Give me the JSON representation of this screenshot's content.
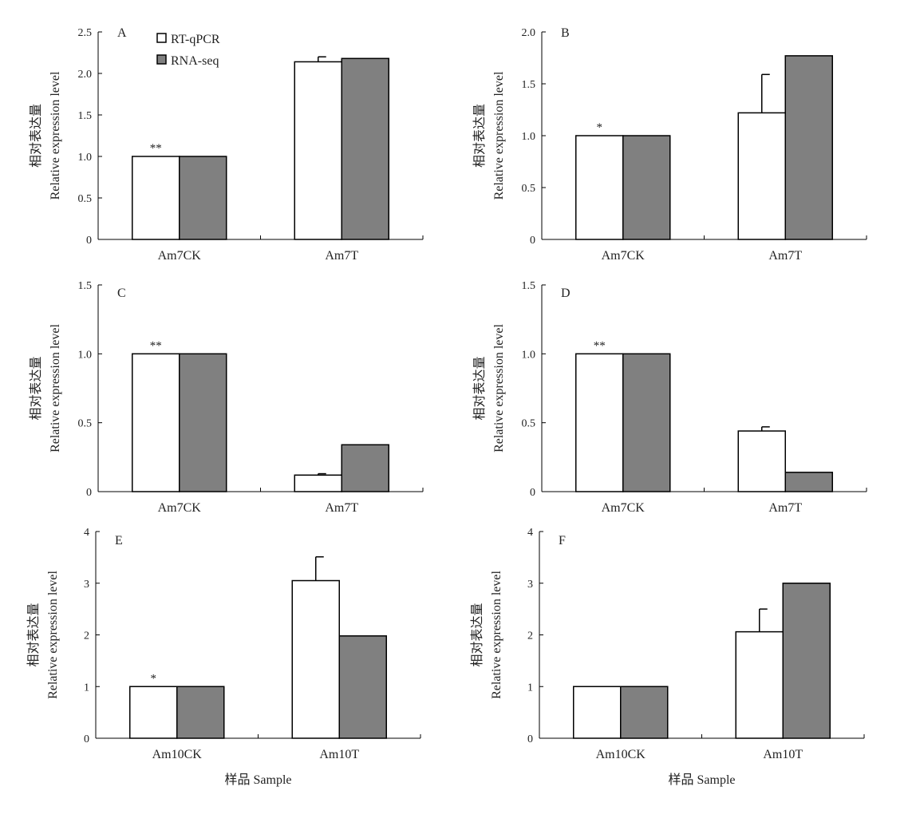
{
  "figure": {
    "y_label_cn": "相对表达量",
    "y_label_en": "Relative expression level",
    "x_label": "样品 Sample"
  },
  "legend": [
    {
      "name": "RT-qPCR",
      "color": "#ffffff"
    },
    {
      "name": "RNA-seq",
      "color": "#808080"
    }
  ],
  "chart_data": [
    {
      "panel": "A",
      "type": "bar",
      "categories": [
        "Am7CK",
        "Am7T"
      ],
      "series": [
        {
          "name": "RT-qPCR",
          "values": [
            1.0,
            2.14
          ],
          "errors": [
            0,
            0.06
          ]
        },
        {
          "name": "RNA-seq",
          "values": [
            1.0,
            2.18
          ]
        }
      ],
      "significance": [
        "**",
        ""
      ],
      "ylim": [
        0,
        2.5
      ],
      "yticks": [
        "0",
        "0.5",
        "1.0",
        "1.5",
        "2.0",
        "2.5"
      ],
      "xlabel": "",
      "ylabel": "相对表达量 Relative expression level"
    },
    {
      "panel": "B",
      "type": "bar",
      "categories": [
        "Am7CK",
        "Am7T"
      ],
      "series": [
        {
          "name": "RT-qPCR",
          "values": [
            1.0,
            1.22
          ],
          "errors": [
            0,
            0.37
          ]
        },
        {
          "name": "RNA-seq",
          "values": [
            1.0,
            1.77
          ]
        }
      ],
      "significance": [
        "*",
        ""
      ],
      "ylim": [
        0,
        2.0
      ],
      "yticks": [
        "0",
        "0.5",
        "1.0",
        "1.5",
        "2.0"
      ],
      "xlabel": "",
      "ylabel": "相对表达量 Relative expression level"
    },
    {
      "panel": "C",
      "type": "bar",
      "categories": [
        "Am7CK",
        "Am7T"
      ],
      "series": [
        {
          "name": "RT-qPCR",
          "values": [
            1.0,
            0.12
          ],
          "errors": [
            0,
            0.01
          ]
        },
        {
          "name": "RNA-seq",
          "values": [
            1.0,
            0.34
          ]
        }
      ],
      "significance": [
        "**",
        ""
      ],
      "ylim": [
        0,
        1.5
      ],
      "yticks": [
        "0",
        "0.5",
        "1.0",
        "1.5"
      ],
      "xlabel": "",
      "ylabel": "相对表达量 Relative expression level"
    },
    {
      "panel": "D",
      "type": "bar",
      "categories": [
        "Am7CK",
        "Am7T"
      ],
      "series": [
        {
          "name": "RT-qPCR",
          "values": [
            1.0,
            0.44
          ],
          "errors": [
            0,
            0.03
          ]
        },
        {
          "name": "RNA-seq",
          "values": [
            1.0,
            0.14
          ]
        }
      ],
      "significance": [
        "**",
        ""
      ],
      "ylim": [
        0,
        1.5
      ],
      "yticks": [
        "0",
        "0.5",
        "1.0",
        "1.5"
      ],
      "xlabel": "",
      "ylabel": "相对表达量 Relative expression level"
    },
    {
      "panel": "E",
      "type": "bar",
      "categories": [
        "Am10CK",
        "Am10T"
      ],
      "series": [
        {
          "name": "RT-qPCR",
          "values": [
            1.0,
            3.05
          ],
          "errors": [
            0,
            0.46
          ]
        },
        {
          "name": "RNA-seq",
          "values": [
            1.0,
            1.98
          ]
        }
      ],
      "significance": [
        "*",
        ""
      ],
      "ylim": [
        0,
        4
      ],
      "yticks": [
        "0",
        "1",
        "2",
        "3",
        "4"
      ],
      "xlabel": "样品 Sample",
      "ylabel": "相对表达量 Relative expression level"
    },
    {
      "panel": "F",
      "type": "bar",
      "categories": [
        "Am10CK",
        "Am10T"
      ],
      "series": [
        {
          "name": "RT-qPCR",
          "values": [
            1.0,
            2.06
          ],
          "errors": [
            0,
            0.44
          ]
        },
        {
          "name": "RNA-seq",
          "values": [
            1.0,
            3.0
          ]
        }
      ],
      "significance": [
        "",
        ""
      ],
      "ylim": [
        0,
        4
      ],
      "yticks": [
        "0",
        "1",
        "2",
        "3",
        "4"
      ],
      "xlabel": "样品 Sample",
      "ylabel": "相对表达量 Relative expression level"
    }
  ]
}
